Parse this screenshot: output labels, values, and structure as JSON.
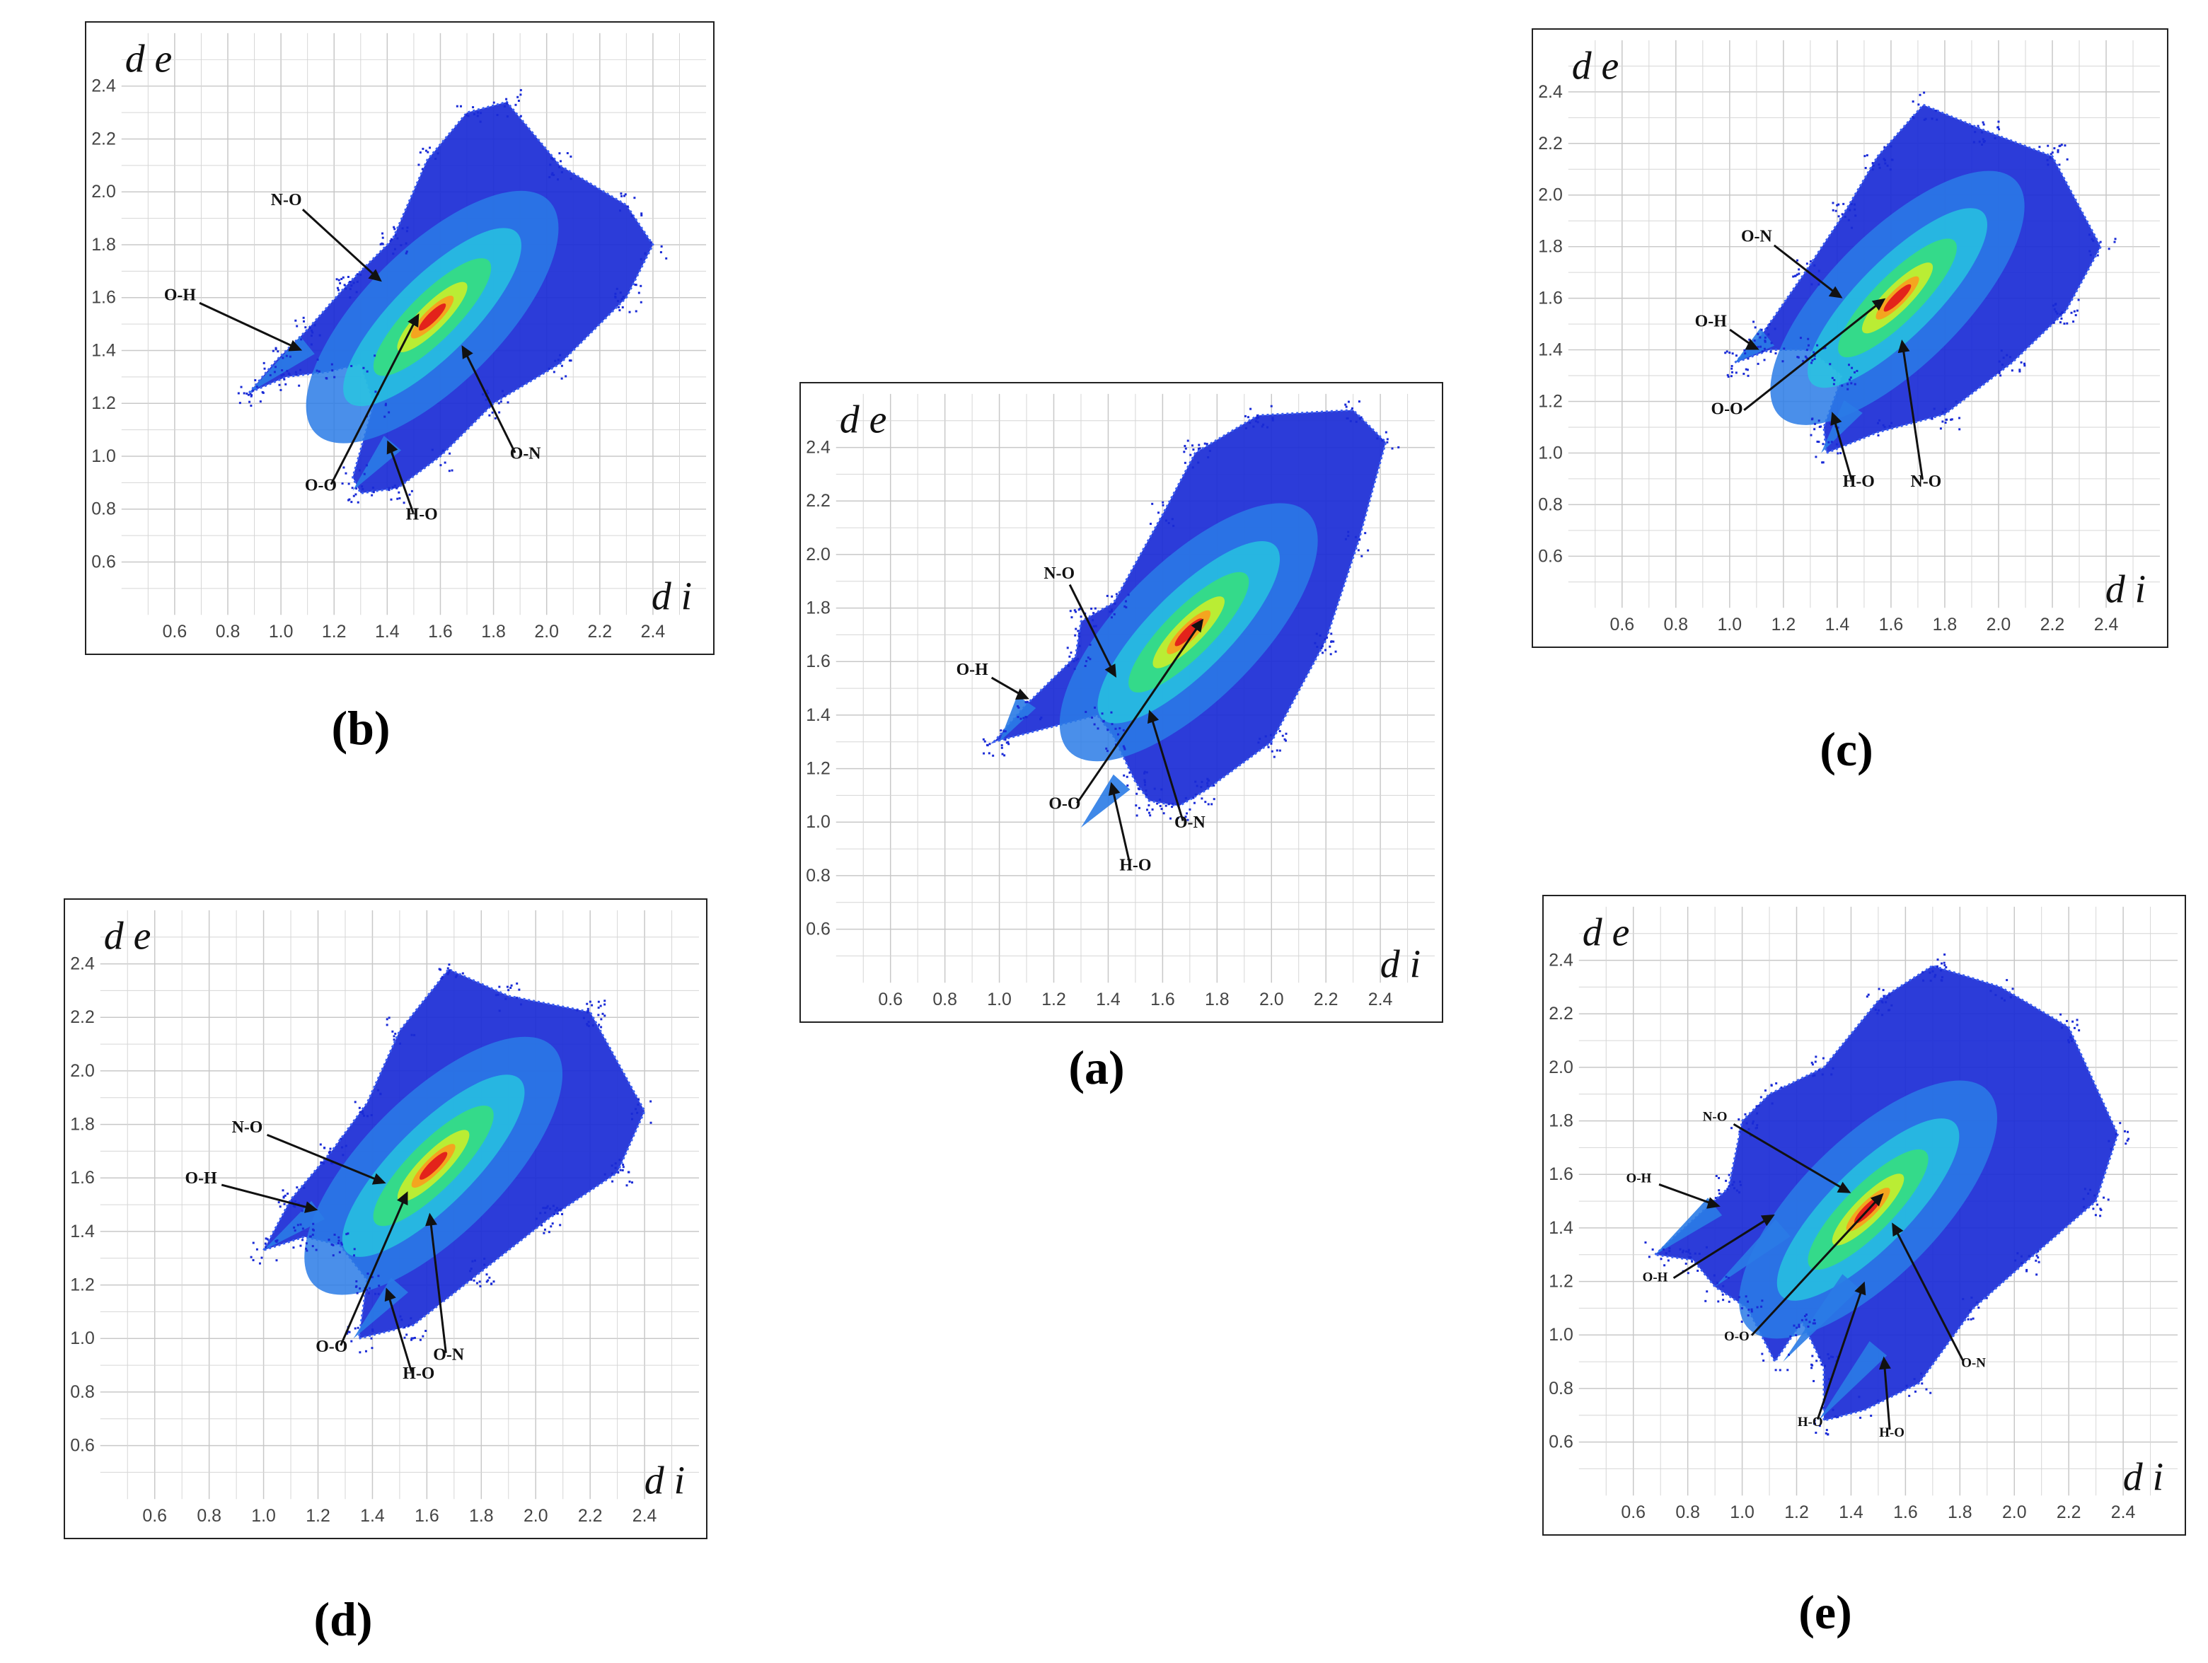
{
  "figure": {
    "background": "#ffffff"
  },
  "chart_data": [
    {
      "id": "a",
      "type": "scatter",
      "caption": "(a)",
      "xlabel": "d i",
      "ylabel": "d e",
      "xlim": [
        0.4,
        2.6
      ],
      "ylim": [
        0.4,
        2.6
      ],
      "x_ticks": [
        "0.6",
        "0.8",
        "1.0",
        "1.2",
        "1.4",
        "1.6",
        "1.8",
        "2.0",
        "2.2",
        "2.4"
      ],
      "y_ticks": [
        "0.6",
        "0.8",
        "1.0",
        "1.2",
        "1.4",
        "1.6",
        "1.8",
        "2.0",
        "2.2",
        "2.4"
      ],
      "grid": true,
      "colormap": [
        "#1a2bd6",
        "#2a7be6",
        "#27c7e0",
        "#37e07a",
        "#c9ee2a",
        "#f7a11f",
        "#e3231b"
      ],
      "wings": [
        {
          "x": [
            1.0,
            1.1
          ],
          "y": [
            1.3,
            1.45
          ]
        },
        {
          "x": [
            1.3,
            1.45
          ],
          "y": [
            0.98,
            1.15
          ]
        }
      ],
      "body": [
        [
          0.98,
          1.3
        ],
        [
          1.1,
          1.44
        ],
        [
          1.28,
          1.62
        ],
        [
          1.3,
          1.75
        ],
        [
          1.42,
          1.82
        ],
        [
          1.6,
          2.15
        ],
        [
          1.72,
          2.38
        ],
        [
          1.95,
          2.52
        ],
        [
          2.3,
          2.54
        ],
        [
          2.42,
          2.42
        ],
        [
          2.32,
          2.05
        ],
        [
          2.2,
          1.68
        ],
        [
          2.0,
          1.3
        ],
        [
          1.76,
          1.12
        ],
        [
          1.66,
          1.06
        ],
        [
          1.55,
          1.08
        ],
        [
          1.5,
          1.15
        ],
        [
          1.42,
          1.32
        ],
        [
          1.36,
          1.4
        ]
      ],
      "annotations": [
        {
          "label": "N-O",
          "text": [
            1.22,
            1.91
          ],
          "point": [
            1.43,
            1.54
          ]
        },
        {
          "label": "O-H",
          "text": [
            0.9,
            1.55
          ],
          "point": [
            1.11,
            1.46
          ]
        },
        {
          "label": "O-O",
          "text": [
            1.24,
            1.05
          ],
          "point": [
            1.75,
            1.76
          ]
        },
        {
          "label": "O-N",
          "text": [
            1.7,
            0.98
          ],
          "point": [
            1.55,
            1.42
          ]
        },
        {
          "label": "H-O",
          "text": [
            1.5,
            0.82
          ],
          "point": [
            1.41,
            1.15
          ]
        }
      ]
    },
    {
      "id": "b",
      "type": "scatter",
      "caption": "(b)",
      "xlabel": "d i",
      "ylabel": "d e",
      "xlim": [
        0.4,
        2.6
      ],
      "ylim": [
        0.4,
        2.6
      ],
      "x_ticks": [
        "0.6",
        "0.8",
        "1.0",
        "1.2",
        "1.4",
        "1.6",
        "1.8",
        "2.0",
        "2.2",
        "2.4"
      ],
      "y_ticks": [
        "0.6",
        "0.8",
        "1.0",
        "1.2",
        "1.4",
        "1.6",
        "1.8",
        "2.0",
        "2.2",
        "2.4"
      ],
      "grid": true,
      "colormap": [
        "#1a2bd6",
        "#2a7be6",
        "#27c7e0",
        "#37e07a",
        "#c9ee2a",
        "#f7a11f",
        "#e3231b"
      ],
      "wings": [
        {
          "x": [
            0.88,
            1.1
          ],
          "y": [
            1.24,
            1.42
          ]
        },
        {
          "x": [
            1.27,
            1.42
          ],
          "y": [
            0.87,
            1.05
          ]
        }
      ],
      "body": [
        [
          0.88,
          1.24
        ],
        [
          0.98,
          1.36
        ],
        [
          1.1,
          1.48
        ],
        [
          1.25,
          1.65
        ],
        [
          1.42,
          1.82
        ],
        [
          1.55,
          2.12
        ],
        [
          1.7,
          2.3
        ],
        [
          1.85,
          2.34
        ],
        [
          2.05,
          2.1
        ],
        [
          2.3,
          1.95
        ],
        [
          2.4,
          1.8
        ],
        [
          2.3,
          1.6
        ],
        [
          2.05,
          1.35
        ],
        [
          1.8,
          1.2
        ],
        [
          1.6,
          1.0
        ],
        [
          1.44,
          0.88
        ],
        [
          1.3,
          0.86
        ],
        [
          1.27,
          0.92
        ],
        [
          1.35,
          1.2
        ],
        [
          1.3,
          1.35
        ],
        [
          1.18,
          1.32
        ],
        [
          1.02,
          1.3
        ]
      ],
      "annotations": [
        {
          "label": "N-O",
          "text": [
            1.02,
            1.95
          ],
          "point": [
            1.38,
            1.66
          ]
        },
        {
          "label": "O-H",
          "text": [
            0.62,
            1.59
          ],
          "point": [
            1.08,
            1.4
          ]
        },
        {
          "label": "O-O",
          "text": [
            1.15,
            0.87
          ],
          "point": [
            1.52,
            1.54
          ]
        },
        {
          "label": "O-N",
          "text": [
            1.92,
            0.99
          ],
          "point": [
            1.68,
            1.42
          ]
        },
        {
          "label": "H-O",
          "text": [
            1.53,
            0.76
          ],
          "point": [
            1.4,
            1.06
          ]
        }
      ]
    },
    {
      "id": "c",
      "type": "scatter",
      "caption": "(c)",
      "xlabel": "d i",
      "ylabel": "d e",
      "xlim": [
        0.4,
        2.6
      ],
      "ylim": [
        0.4,
        2.6
      ],
      "x_ticks": [
        "0.6",
        "0.8",
        "1.0",
        "1.2",
        "1.4",
        "1.6",
        "1.8",
        "2.0",
        "2.2",
        "2.4"
      ],
      "y_ticks": [
        "0.6",
        "0.8",
        "1.0",
        "1.2",
        "1.4",
        "1.6",
        "1.8",
        "2.0",
        "2.2",
        "2.4"
      ],
      "grid": true,
      "colormap": [
        "#1a2bd6",
        "#2a7be6",
        "#27c7e0",
        "#37e07a",
        "#c9ee2a",
        "#f7a11f",
        "#e3231b"
      ],
      "wings": [
        {
          "x": [
            1.02,
            1.14
          ],
          "y": [
            1.35,
            1.45
          ]
        },
        {
          "x": [
            1.34,
            1.46
          ],
          "y": [
            1.0,
            1.18
          ]
        }
      ],
      "body": [
        [
          1.02,
          1.35
        ],
        [
          1.12,
          1.46
        ],
        [
          1.28,
          1.7
        ],
        [
          1.42,
          1.92
        ],
        [
          1.55,
          2.15
        ],
        [
          1.72,
          2.35
        ],
        [
          1.95,
          2.25
        ],
        [
          2.2,
          2.15
        ],
        [
          2.38,
          1.8
        ],
        [
          2.25,
          1.55
        ],
        [
          2.05,
          1.35
        ],
        [
          1.8,
          1.15
        ],
        [
          1.55,
          1.08
        ],
        [
          1.36,
          1.0
        ],
        [
          1.35,
          1.1
        ],
        [
          1.42,
          1.3
        ],
        [
          1.3,
          1.4
        ],
        [
          1.15,
          1.4
        ]
      ],
      "annotations": [
        {
          "label": "O-N",
          "text": [
            1.1,
            1.82
          ],
          "point": [
            1.42,
            1.6
          ]
        },
        {
          "label": "O-H",
          "text": [
            0.93,
            1.49
          ],
          "point": [
            1.11,
            1.4
          ]
        },
        {
          "label": "O-O",
          "text": [
            0.99,
            1.15
          ],
          "point": [
            1.58,
            1.6
          ]
        },
        {
          "label": "H-O",
          "text": [
            1.48,
            0.87
          ],
          "point": [
            1.38,
            1.16
          ]
        },
        {
          "label": "N-O",
          "text": [
            1.73,
            0.87
          ],
          "point": [
            1.64,
            1.44
          ]
        }
      ]
    },
    {
      "id": "d",
      "type": "scatter",
      "caption": "(d)",
      "xlabel": "d i",
      "ylabel": "d e",
      "xlim": [
        0.4,
        2.6
      ],
      "ylim": [
        0.4,
        2.6
      ],
      "x_ticks": [
        "0.6",
        "0.8",
        "1.0",
        "1.2",
        "1.4",
        "1.6",
        "1.8",
        "2.0",
        "2.2",
        "2.4"
      ],
      "y_ticks": [
        "0.6",
        "0.8",
        "1.0",
        "1.2",
        "1.4",
        "1.6",
        "1.8",
        "2.0",
        "2.2",
        "2.4"
      ],
      "grid": true,
      "colormap": [
        "#1a2bd6",
        "#2a7be6",
        "#27c7e0",
        "#37e07a",
        "#c9ee2a",
        "#f7a11f",
        "#e3231b"
      ],
      "wings": [
        {
          "x": [
            1.0,
            1.2
          ],
          "y": [
            1.33,
            1.48
          ]
        },
        {
          "x": [
            1.33,
            1.5
          ],
          "y": [
            1.0,
            1.2
          ]
        }
      ],
      "body": [
        [
          1.0,
          1.33
        ],
        [
          1.1,
          1.52
        ],
        [
          1.25,
          1.7
        ],
        [
          1.38,
          1.88
        ],
        [
          1.5,
          2.15
        ],
        [
          1.68,
          2.38
        ],
        [
          1.9,
          2.28
        ],
        [
          2.2,
          2.22
        ],
        [
          2.4,
          1.85
        ],
        [
          2.3,
          1.62
        ],
        [
          2.05,
          1.45
        ],
        [
          1.8,
          1.25
        ],
        [
          1.55,
          1.05
        ],
        [
          1.35,
          1.0
        ],
        [
          1.38,
          1.22
        ],
        [
          1.28,
          1.35
        ],
        [
          1.15,
          1.38
        ]
      ],
      "annotations": [
        {
          "label": "N-O",
          "text": [
            0.94,
            1.77
          ],
          "point": [
            1.45,
            1.58
          ]
        },
        {
          "label": "O-H",
          "text": [
            0.77,
            1.58
          ],
          "point": [
            1.2,
            1.48
          ]
        },
        {
          "label": "O-O",
          "text": [
            1.25,
            0.95
          ],
          "point": [
            1.53,
            1.55
          ]
        },
        {
          "label": "O-N",
          "text": [
            1.68,
            0.92
          ],
          "point": [
            1.61,
            1.47
          ]
        },
        {
          "label": "H-O",
          "text": [
            1.57,
            0.85
          ],
          "point": [
            1.45,
            1.19
          ]
        }
      ]
    },
    {
      "id": "e",
      "type": "scatter",
      "caption": "(e)",
      "xlabel": "d i",
      "ylabel": "d e",
      "xlim": [
        0.4,
        2.6
      ],
      "ylim": [
        0.4,
        2.6
      ],
      "x_ticks": [
        "0.6",
        "0.8",
        "1.0",
        "1.2",
        "1.4",
        "1.6",
        "1.8",
        "2.0",
        "2.2",
        "2.4"
      ],
      "y_ticks": [
        "0.6",
        "0.8",
        "1.0",
        "1.2",
        "1.4",
        "1.6",
        "1.8",
        "2.0",
        "2.2",
        "2.4"
      ],
      "grid": true,
      "colormap": [
        "#1a2bd6",
        "#2a7be6",
        "#27c7e0",
        "#37e07a",
        "#c9ee2a",
        "#f7a11f",
        "#e3231b"
      ],
      "wings": [
        {
          "x": [
            0.68,
            0.9
          ],
          "y": [
            1.3,
            1.48
          ]
        },
        {
          "x": [
            0.9,
            1.15
          ],
          "y": [
            1.18,
            1.4
          ]
        },
        {
          "x": [
            1.15,
            1.4
          ],
          "y": [
            0.9,
            1.2
          ]
        },
        {
          "x": [
            1.28,
            1.5
          ],
          "y": [
            0.68,
            0.95
          ]
        }
      ],
      "body": [
        [
          0.68,
          1.3
        ],
        [
          0.95,
          1.55
        ],
        [
          1.0,
          1.8
        ],
        [
          1.1,
          1.9
        ],
        [
          1.3,
          2.0
        ],
        [
          1.5,
          2.25
        ],
        [
          1.7,
          2.38
        ],
        [
          1.95,
          2.3
        ],
        [
          2.2,
          2.15
        ],
        [
          2.38,
          1.75
        ],
        [
          2.3,
          1.5
        ],
        [
          2.05,
          1.28
        ],
        [
          1.85,
          1.1
        ],
        [
          1.65,
          0.82
        ],
        [
          1.45,
          0.72
        ],
        [
          1.3,
          0.68
        ],
        [
          1.3,
          0.88
        ],
        [
          1.22,
          1.05
        ],
        [
          1.12,
          0.9
        ],
        [
          1.02,
          1.1
        ],
        [
          0.9,
          1.18
        ],
        [
          0.82,
          1.28
        ]
      ],
      "annotations": [
        {
          "label": "N-O",
          "text": [
            0.9,
            1.8
          ],
          "point": [
            1.4,
            1.53
          ]
        },
        {
          "label": "O-H",
          "text": [
            0.62,
            1.57
          ],
          "point": [
            0.92,
            1.48
          ]
        },
        {
          "label": "O-H",
          "text": [
            0.68,
            1.2
          ],
          "point": [
            1.12,
            1.45
          ]
        },
        {
          "label": "O-O",
          "text": [
            0.98,
            0.98
          ],
          "point": [
            1.52,
            1.53
          ]
        },
        {
          "label": "H-O",
          "text": [
            1.25,
            0.66
          ],
          "point": [
            1.45,
            1.2
          ]
        },
        {
          "label": "H-O",
          "text": [
            1.55,
            0.62
          ],
          "point": [
            1.52,
            0.92
          ]
        },
        {
          "label": "O-N",
          "text": [
            1.85,
            0.88
          ],
          "point": [
            1.55,
            1.42
          ]
        }
      ]
    }
  ]
}
